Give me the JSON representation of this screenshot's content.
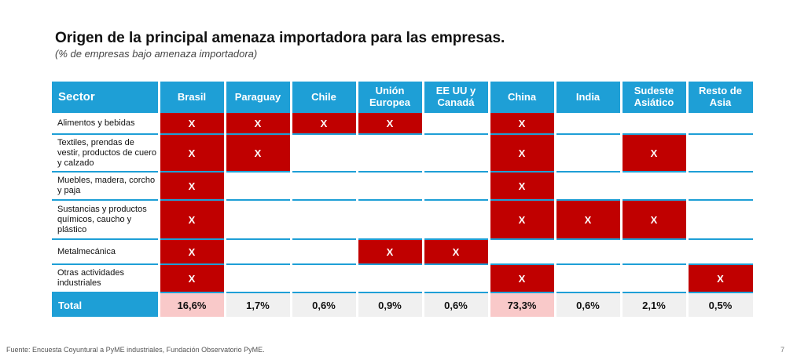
{
  "title": "Origen de la principal amenaza importadora para las empresas.",
  "subtitle": "(% de empresas bajo amenaza importadora)",
  "header": {
    "sector": "Sector",
    "columns": [
      "Brasil",
      "Paraguay",
      "Chile",
      "Unión Europea",
      "EE UU y Canadá",
      "China",
      "India",
      "Sudeste Asiático",
      "Resto de Asia"
    ]
  },
  "rows": [
    {
      "label": "Alimentos y bebidas",
      "marks": [
        "X",
        "X",
        "X",
        "X",
        "",
        "X",
        "",
        "",
        ""
      ]
    },
    {
      "label": "Textiles, prendas de vestir, productos de cuero y calzado",
      "marks": [
        "X",
        "X",
        "",
        "",
        "",
        "X",
        "",
        "X",
        ""
      ]
    },
    {
      "label": "Muebles, madera, corcho y paja",
      "marks": [
        "X",
        "",
        "",
        "",
        "",
        "X",
        "",
        "",
        ""
      ]
    },
    {
      "label": "Sustancias y productos químicos, caucho y plástico",
      "marks": [
        "X",
        "",
        "",
        "",
        "",
        "X",
        "X",
        "X",
        ""
      ]
    },
    {
      "label": "Metalmecánica",
      "marks": [
        "X",
        "",
        "",
        "X",
        "X",
        "",
        "",
        "",
        ""
      ]
    },
    {
      "label": "Otras actividades industriales",
      "marks": [
        "X",
        "",
        "",
        "",
        "",
        "X",
        "",
        "",
        "X"
      ]
    }
  ],
  "total": {
    "label": "Total",
    "values": [
      "16,6%",
      "1,7%",
      "0,6%",
      "0,9%",
      "0,6%",
      "73,3%",
      "0,6%",
      "2,1%",
      "0,5%"
    ],
    "highlight": [
      true,
      false,
      false,
      false,
      false,
      true,
      false,
      false,
      false
    ]
  },
  "source": "Fuente: Encuesta Coyuntural a PyME industriales, Fundación Observatorio PyME.",
  "page_marker": "7",
  "colors": {
    "header": "#1e9fd6",
    "mark": "#c00000",
    "highlight": "#f9c9c9",
    "total_bg": "#f0f0f0"
  }
}
